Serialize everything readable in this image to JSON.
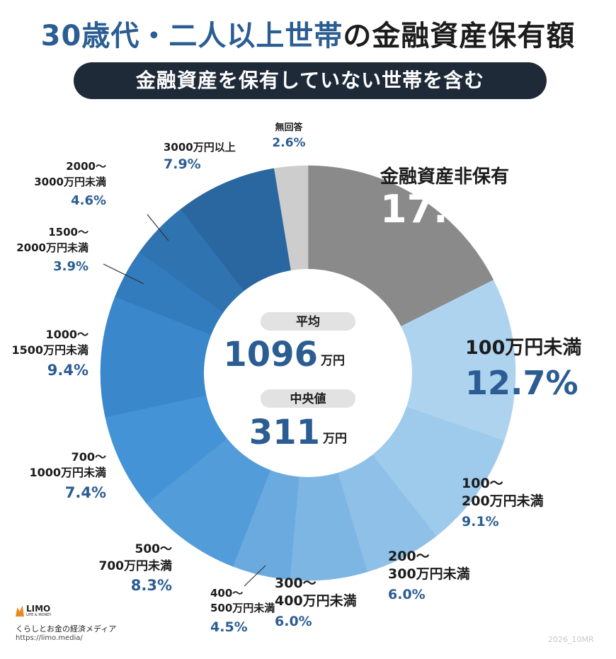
{
  "header": {
    "title_part1": "30歳代・二人以上世帯",
    "title_part2": "の金融資産保有額",
    "subtitle": "金融資産を保有していない世帯を含む"
  },
  "center": {
    "avg_label": "平均",
    "avg_value": "1096",
    "avg_unit": "万円",
    "median_label": "中央値",
    "median_value": "311",
    "median_unit": "万円"
  },
  "chart_data": {
    "type": "pie",
    "donut": true,
    "title": "30歳代・二人以上世帯の金融資産保有額",
    "subtitle": "金融資産を保有していない世帯を含む",
    "unit": "%",
    "slices": [
      {
        "label": "金融資産非保有",
        "value": 17.6,
        "display": "17.6%",
        "color": "#8a8a8a"
      },
      {
        "label": "100万円未満",
        "value": 12.7,
        "display": "12.7%",
        "color": "#aed3ef"
      },
      {
        "label": "100～200万円未満",
        "value": 9.1,
        "display": "9.1%",
        "color": "#9ecaeb"
      },
      {
        "label": "200～300万円未満",
        "value": 6.0,
        "display": "6.0%",
        "color": "#8fc0e7"
      },
      {
        "label": "300～400万円未満",
        "value": 6.0,
        "display": "6.0%",
        "color": "#7db5e3"
      },
      {
        "label": "400～500万円未満",
        "value": 4.5,
        "display": "4.5%",
        "color": "#6aaadf"
      },
      {
        "label": "500～700万円未満",
        "value": 8.3,
        "display": "8.3%",
        "color": "#529cda"
      },
      {
        "label": "700～1000万円未満",
        "value": 7.4,
        "display": "7.4%",
        "color": "#4393d6"
      },
      {
        "label": "1000～1500万円未満",
        "value": 9.4,
        "display": "9.4%",
        "color": "#3a87cc"
      },
      {
        "label": "1500～2000万円未満",
        "value": 3.9,
        "display": "3.9%",
        "color": "#327bbd"
      },
      {
        "label": "2000～3000万円未満",
        "value": 4.6,
        "display": "4.6%",
        "color": "#2f73b1"
      },
      {
        "label": "3000万円以上",
        "value": 7.9,
        "display": "7.9%",
        "color": "#2a66a0"
      },
      {
        "label": "無回答",
        "value": 2.6,
        "display": "2.6%",
        "color": "#cdcdcd"
      }
    ]
  },
  "labels": [
    {
      "lines": [
        "金融資産非保有"
      ],
      "pct": "17.6%"
    },
    {
      "lines": [
        "100万円未満"
      ],
      "pct": "12.7%"
    },
    {
      "lines": [
        "100～",
        "200万円未満"
      ],
      "pct": "9.1%"
    },
    {
      "lines": [
        "200～",
        "300万円未満"
      ],
      "pct": "6.0%"
    },
    {
      "lines": [
        "300～",
        "400万円未満"
      ],
      "pct": "6.0%"
    },
    {
      "lines": [
        "400～",
        "500万円未満"
      ],
      "pct": "4.5%"
    },
    {
      "lines": [
        "500～",
        "700万円未満"
      ],
      "pct": "8.3%"
    },
    {
      "lines": [
        "700～",
        "1000万円未満"
      ],
      "pct": "7.4%"
    },
    {
      "lines": [
        "1000～",
        "1500万円未満"
      ],
      "pct": "9.4%"
    },
    {
      "lines": [
        "1500～",
        "2000万円未満"
      ],
      "pct": "3.9%"
    },
    {
      "lines": [
        "2000～",
        "3000万円未満"
      ],
      "pct": "4.6%"
    },
    {
      "lines": [
        "3000万円以上"
      ],
      "pct": "7.9%"
    },
    {
      "lines": [
        "無回答"
      ],
      "pct": "2.6%"
    }
  ],
  "colors": {
    "title_accent": "#2b5d93",
    "label_pct": "#2b5d93",
    "label_text": "#1c1c1c",
    "pill_bg": "#e2e2e2"
  },
  "footer": {
    "logo_name": "LIMO",
    "logo_tag": "LIFE & MONEY",
    "tagline": "くらしとお金の経済メディア",
    "url": "https://limo.media/",
    "code": "2026_10MR"
  }
}
